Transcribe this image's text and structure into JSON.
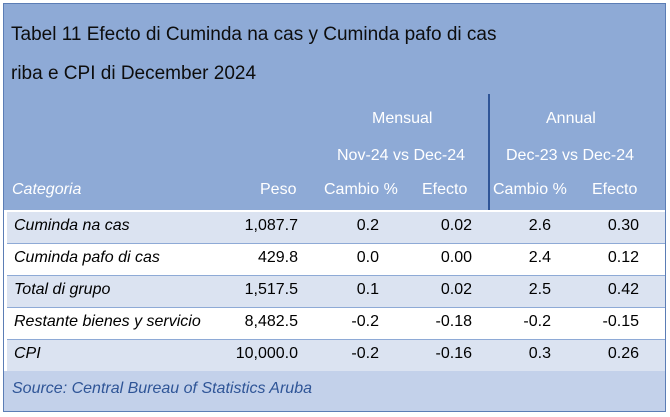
{
  "title": {
    "line1": "Tabel 11 Efecto di Cuminda na cas y Cuminda pafo di cas",
    "line2": "riba e CPI di December 2024"
  },
  "groups": {
    "mensual": "Mensual",
    "mensual_period": "Nov-24 vs Dec-24",
    "annual": "Annual",
    "annual_period": "Dec-23 vs Dec-24"
  },
  "headers": {
    "categoria": "Categoria",
    "peso": "Peso",
    "cambio_m": "Cambio %",
    "efecto_m": "Efecto",
    "cambio_a": "Cambio %",
    "efecto_a": "Efecto"
  },
  "rows": [
    {
      "categoria": "Cuminda na cas",
      "peso": "1,087.7",
      "cambio_m": "0.2",
      "efecto_m": "0.02",
      "cambio_a": "2.6",
      "efecto_a": "0.30"
    },
    {
      "categoria": "Cuminda pafo di cas",
      "peso": "429.8",
      "cambio_m": "0.0",
      "efecto_m": "0.00",
      "cambio_a": "2.4",
      "efecto_a": "0.12"
    },
    {
      "categoria": "Total di grupo",
      "peso": "1,517.5",
      "cambio_m": "0.1",
      "efecto_m": "0.02",
      "cambio_a": "2.5",
      "efecto_a": "0.42"
    },
    {
      "categoria": "Restante bienes y servicio",
      "peso": "8,482.5",
      "cambio_m": "-0.2",
      "efecto_m": "-0.18",
      "cambio_a": "-0.2",
      "efecto_a": "-0.15"
    },
    {
      "categoria": "CPI",
      "peso": "10,000.0",
      "cambio_m": "-0.2",
      "efecto_m": "-0.16",
      "cambio_a": "0.3",
      "efecto_a": "0.26"
    }
  ],
  "source": "Source: Central Bureau of Statistics Aruba",
  "colors": {
    "header_bg": "#8eaad6",
    "row_alt_bg": "#dbe3f1",
    "footer_bg": "#c3d1ea",
    "source_text": "#2f5597"
  }
}
